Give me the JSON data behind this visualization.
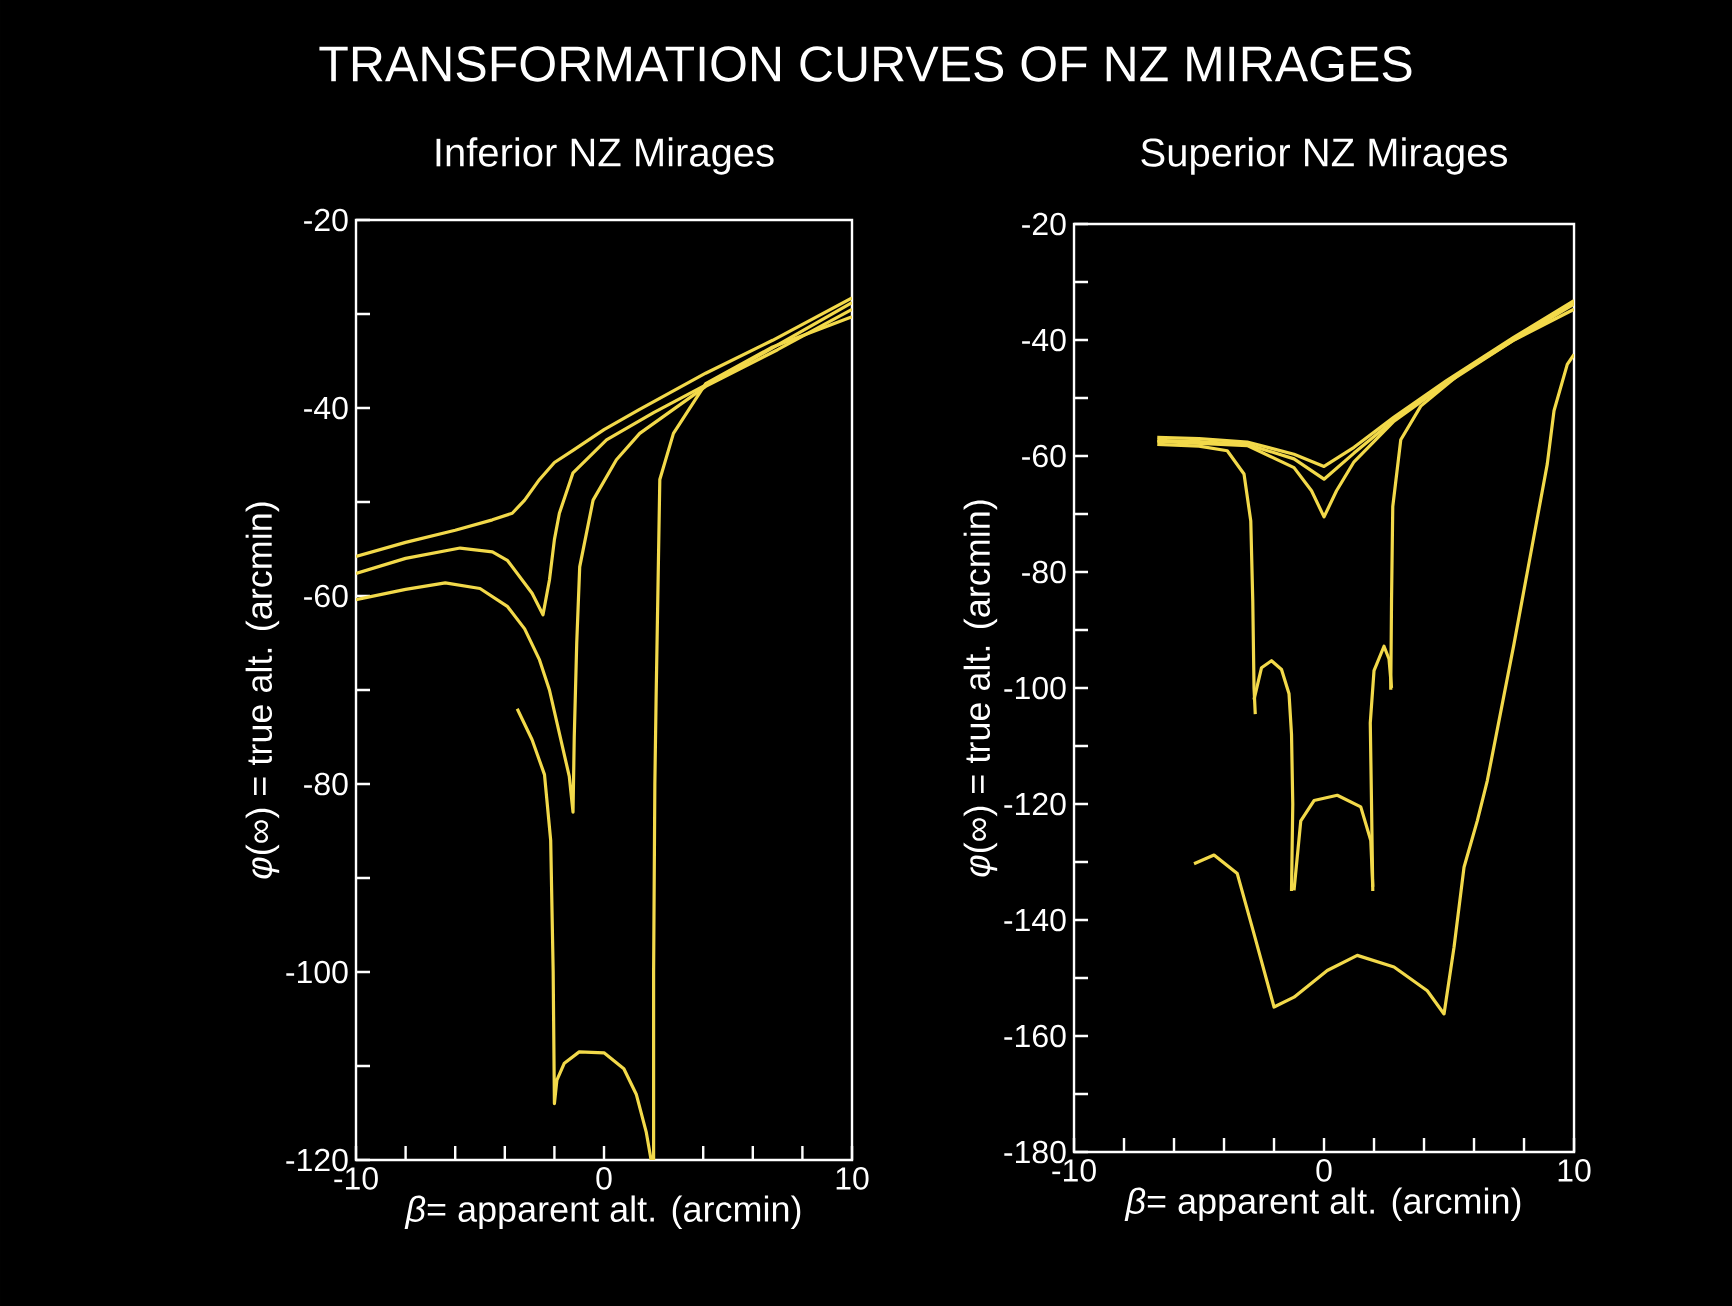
{
  "chart_data": [
    {
      "type": "line",
      "title": "TRANSFORMATION CURVES OF NZ MIRAGES",
      "subtitle": "Inferior NZ Mirages",
      "xlabel": "*β*= apparent alt. (arcmin)",
      "ylabel": "*φ*(∞) = true alt. (arcmin)",
      "xlim": [
        -10,
        10
      ],
      "ylim": [
        -120,
        -20
      ],
      "xticks": [
        -10,
        {
          "value": -8,
          "label": null
        },
        {
          "value": -6,
          "label": null
        },
        {
          "value": -4,
          "label": null
        },
        {
          "value": -2,
          "label": null
        },
        0,
        {
          "value": 2,
          "label": null
        },
        {
          "value": 4,
          "label": null
        },
        {
          "value": 6,
          "label": null
        },
        {
          "value": 8,
          "label": null
        },
        10
      ],
      "yticks": [
        -120,
        {
          "value": -110,
          "label": null
        },
        -100,
        {
          "value": -90,
          "label": null
        },
        -80,
        {
          "value": -70,
          "label": null
        },
        -60,
        {
          "value": -50,
          "label": null
        },
        -40,
        {
          "value": -30,
          "label": null
        },
        -20
      ],
      "series": [
        {
          "color": "#f2d94a",
          "x": [
            -10,
            -8,
            -6,
            -4.5,
            -3.7,
            -3.2,
            -2.6,
            -2,
            -1.25,
            0,
            1.4,
            4.1,
            6.8,
            10
          ],
          "values": [
            -55.8,
            -54.3,
            -53,
            -51.9,
            -51.2,
            -49.8,
            -47.6,
            -45.8,
            -44.5,
            -42.3,
            -40.2,
            -36.3,
            -32.8,
            -28.3
          ]
        },
        {
          "color": "#f2d94a",
          "x": [
            -10,
            -8,
            -5.8,
            -4.5,
            -3.9,
            -2.9,
            -2.46,
            -2.2,
            -2,
            -1.8,
            -1.25,
            0.1,
            2,
            5,
            10
          ],
          "values": [
            -57.6,
            -56,
            -54.9,
            -55.3,
            -56.2,
            -59.7,
            -62,
            -58.3,
            -54,
            -51.2,
            -46.9,
            -43.4,
            -40.5,
            -36.3,
            -28.8
          ]
        },
        {
          "color": "#f2d94a",
          "x": [
            -10,
            -8,
            -6.4,
            -5,
            -3.9,
            -3.2,
            -2.6,
            -2.2,
            -1.8,
            -1.4,
            -1.25,
            -1.2,
            -1.1,
            -0.98,
            -0.44,
            0.5,
            1.44,
            4.1,
            7,
            10
          ],
          "values": [
            -60.4,
            -59.3,
            -58.6,
            -59.2,
            -61.1,
            -63.5,
            -66.8,
            -70,
            -74.6,
            -79.2,
            -83,
            -75,
            -65,
            -56.9,
            -49.8,
            -45.5,
            -42.7,
            -37.7,
            -33.8,
            -29.5
          ]
        },
        {
          "color": "#f2d94a",
          "x": [
            2,
            2,
            2.05,
            2.1,
            2.25,
            2.8,
            4.1,
            6.8,
            10
          ],
          "values": [
            -120,
            -100,
            -80,
            -71,
            -47.6,
            -42.7,
            -37.4,
            -33.5,
            -30.3
          ]
        },
        {
          "color": "#f2d94a",
          "x": [
            -3.5,
            -2.9,
            -2.4,
            -2.15,
            -2.05,
            -2,
            -1.9,
            -1.6,
            -1,
            0,
            0.8,
            1.3,
            1.7,
            1.9
          ],
          "values": [
            -72,
            -75.3,
            -79,
            -86,
            -100,
            -114,
            -111.5,
            -109.7,
            -108.5,
            -108.6,
            -110.3,
            -113,
            -117,
            -120
          ]
        }
      ]
    },
    {
      "type": "line",
      "subtitle": "Superior NZ Mirages",
      "xlabel": "*β*= apparent alt. (arcmin)",
      "ylabel": "*φ*(∞) = true alt. (arcmin)",
      "xlim": [
        -10,
        10
      ],
      "ylim": [
        -180,
        -20
      ],
      "xticks": [
        -10,
        {
          "value": -8,
          "label": null
        },
        {
          "value": -6,
          "label": null
        },
        {
          "value": -4,
          "label": null
        },
        {
          "value": -2,
          "label": null
        },
        0,
        {
          "value": 2,
          "label": null
        },
        {
          "value": 4,
          "label": null
        },
        {
          "value": 6,
          "label": null
        },
        {
          "value": 8,
          "label": null
        },
        10
      ],
      "yticks": [
        -180,
        {
          "value": -170,
          "label": null
        },
        -160,
        {
          "value": -150,
          "label": null
        },
        -140,
        {
          "value": -130,
          "label": null
        },
        -120,
        {
          "value": -110,
          "label": null
        },
        -100,
        {
          "value": -90,
          "label": null
        },
        -80,
        {
          "value": -70,
          "label": null
        },
        -60,
        {
          "value": -50,
          "label": null
        },
        -40,
        {
          "value": -30,
          "label": null
        },
        -20
      ],
      "series": [
        {
          "color": "#f2d94a",
          "x": [
            -6.67,
            -5,
            -3.07,
            -1.2,
            0,
            1.2,
            2.8,
            4.9,
            7.6,
            10
          ],
          "values": [
            -56.8,
            -57,
            -57.6,
            -59.7,
            -61.8,
            -58.5,
            -53.3,
            -47,
            -39.5,
            -33.2
          ]
        },
        {
          "color": "#f2d94a",
          "x": [
            -6.67,
            -5,
            -3.07,
            -1.2,
            0,
            1.2,
            2.8,
            4.9,
            7.6,
            10
          ],
          "values": [
            -57.3,
            -57.5,
            -58,
            -60.5,
            -64,
            -59.5,
            -53.8,
            -47.3,
            -39.8,
            -33.5
          ]
        },
        {
          "color": "#f2d94a",
          "x": [
            -6.67,
            -3.07,
            -1.2,
            -0.5,
            0,
            0.5,
            1.2,
            2.8,
            4.9,
            7.6,
            10
          ],
          "values": [
            -57.5,
            -58.2,
            -62,
            -66,
            -70.5,
            -66,
            -61,
            -54,
            -47.5,
            -40,
            -33.8
          ]
        },
        {
          "color": "#f2d94a",
          "x": [
            -6.67,
            -5,
            -3.87,
            -3.2,
            -2.93,
            -2.85,
            -2.8,
            -2.75
          ],
          "values": [
            -58,
            -58.3,
            -59.1,
            -63.1,
            -71.2,
            -85,
            -100,
            -104.5
          ]
        },
        {
          "color": "#f2d94a",
          "x": [
            2.67,
            2.7,
            2.75,
            3.07,
            3.87,
            5.47,
            7.6,
            10
          ],
          "values": [
            -100.3,
            -85,
            -68.7,
            -57.2,
            -51.4,
            -45.7,
            -40,
            -34.7
          ]
        },
        {
          "color": "#f2d94a",
          "x": [
            -2.8,
            -2.5,
            -2.1,
            -1.7,
            -1.4,
            -1.3,
            -1.25,
            -1.3
          ],
          "values": [
            -102,
            -96.5,
            -95.3,
            -96.8,
            -101,
            -108,
            -120,
            -135
          ]
        },
        {
          "color": "#f2d94a",
          "x": [
            1.95,
            1.9,
            1.85,
            2.0,
            2.4,
            2.6,
            2.7
          ],
          "values": [
            -135,
            -120,
            -106,
            -97,
            -92.8,
            -95,
            -100
          ]
        },
        {
          "color": "#f2d94a",
          "x": [
            -1.2,
            -0.93,
            -0.4,
            0.53,
            1.47,
            1.87,
            1.95
          ],
          "values": [
            -134.9,
            -122.9,
            -119.4,
            -118.5,
            -120.5,
            -126.3,
            -134.3
          ]
        },
        {
          "color": "#f2d94a",
          "x": [
            -5.2,
            -4.4,
            -3.47,
            -2.8,
            -2,
            -1.2,
            0.13,
            1.33,
            2.8,
            4.13,
            4.8,
            5.2,
            5.6,
            6.13,
            6.53,
            7.6,
            8.93,
            9.2,
            9.73,
            10
          ],
          "values": [
            -130.3,
            -128.8,
            -132,
            -142.4,
            -155,
            -153.3,
            -148.7,
            -146.1,
            -148.1,
            -152.2,
            -156.2,
            -144.7,
            -130.9,
            -122.9,
            -116,
            -92.4,
            -61.4,
            -52.2,
            -44.2,
            -42.5
          ]
        }
      ]
    }
  ]
}
